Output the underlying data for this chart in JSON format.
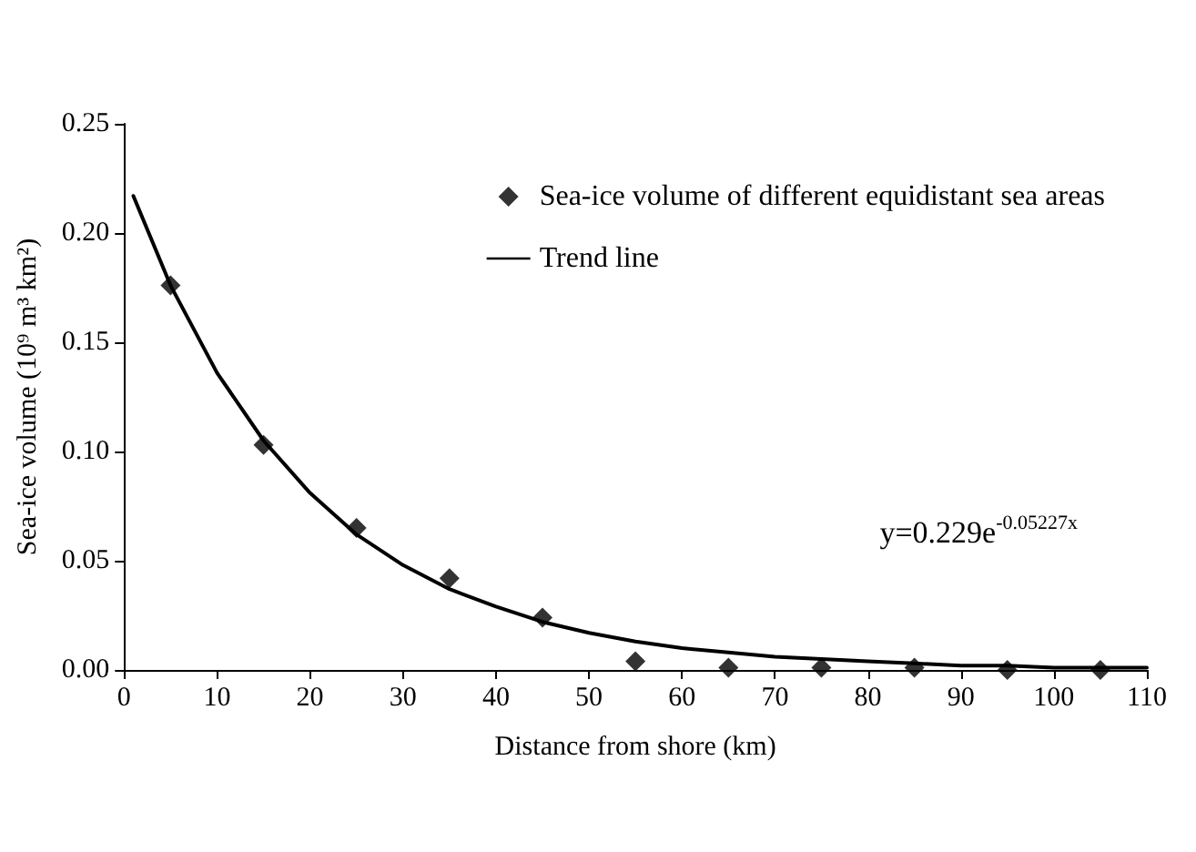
{
  "chart_data": {
    "type": "scatter",
    "xlabel": "Distance from shore (km)",
    "ylabel": "Sea-ice volume (10⁹ m³ km²)",
    "xlim": [
      0,
      110
    ],
    "xticks": [
      0,
      10,
      20,
      30,
      40,
      50,
      60,
      70,
      80,
      90,
      100,
      110
    ],
    "ylim": [
      0,
      0.25
    ],
    "yticks": [
      {
        "value": 0,
        "label": "0.00"
      },
      {
        "value": 0.05,
        "label": "0.05"
      },
      {
        "value": 0.1,
        "label": "0.10"
      },
      {
        "value": 0.15,
        "label": "0.15"
      },
      {
        "value": 0.2,
        "label": "0.20"
      },
      {
        "value": 0.25,
        "label": "0.25"
      }
    ],
    "grid": false,
    "legend": "top right",
    "annotations": [
      "y=0.229e$^{-0.05227x}$"
    ],
    "series": [
      {
        "name": "Sea-ice volume of different equidistant sea areas",
        "type": "scatter",
        "marker": "diamond",
        "color": "#000000",
        "x": [
          5,
          15,
          25,
          35,
          45,
          55,
          65,
          75,
          85,
          95,
          105
        ],
        "values": [
          0.176,
          0.103,
          0.065,
          0.042,
          0.024,
          0.004,
          0.001,
          0.001,
          0.001,
          0.0,
          0.0
        ]
      },
      {
        "name": "Trend line",
        "type": "line",
        "marker": "none",
        "line_style": "solid",
        "color": "#000000",
        "x": [
          1,
          5,
          10,
          15,
          20,
          25,
          30,
          35,
          40,
          45,
          50,
          55,
          60,
          65,
          70,
          75,
          80,
          85,
          90,
          95,
          100,
          105,
          110
        ],
        "values": [
          0.217,
          0.176,
          0.136,
          0.105,
          0.081,
          0.062,
          0.048,
          0.037,
          0.029,
          0.022,
          0.017,
          0.013,
          0.01,
          0.008,
          0.006,
          0.005,
          0.004,
          0.003,
          0.002,
          0.002,
          0.001,
          0.001,
          0.001
        ]
      }
    ]
  }
}
